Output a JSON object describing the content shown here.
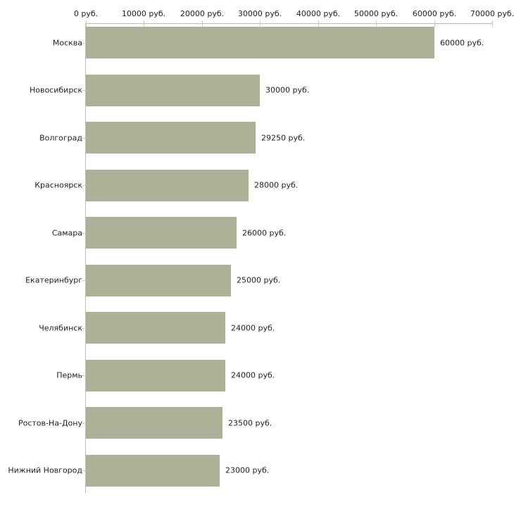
{
  "chart_data": {
    "type": "bar",
    "orientation": "horizontal",
    "title": "",
    "xlabel": "",
    "ylabel": "",
    "categories": [
      "Москва",
      "Новосибирск",
      "Волгоград",
      "Красноярск",
      "Самара",
      "Екатеринбург",
      "Челябинск",
      "Пермь",
      "Ростов-На-Дону",
      "Нижний Новгород"
    ],
    "values": [
      60000,
      30000,
      29250,
      28000,
      26000,
      25000,
      24000,
      24000,
      23500,
      23000
    ],
    "value_labels": [
      "60000 руб.",
      "30000 руб.",
      "29250 руб.",
      "28000 руб.",
      "26000 руб.",
      "25000 руб.",
      "24000 руб.",
      "24000 руб.",
      "23500 руб.",
      "23000 руб."
    ],
    "x_axis": {
      "position": "top",
      "min": 0,
      "max": 70000,
      "tick_step": 10000,
      "tick_labels": [
        "0 руб.",
        "10000 руб.",
        "20000 руб.",
        "30000 руб.",
        "40000 руб.",
        "50000 руб.",
        "60000 руб.",
        "70000 руб."
      ]
    },
    "grid": false,
    "legend": false,
    "colors": {
      "bar": "#acb197",
      "axis_line": "#bbbbbb",
      "tick": "#cfcfa3",
      "text": "#222222",
      "background": "#ffffff"
    }
  }
}
